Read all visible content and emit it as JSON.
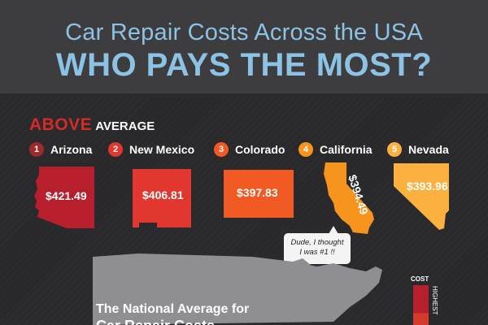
{
  "header": {
    "title_line1": "Car Repair Costs Across the USA",
    "title_line2": "WHO PAYS THE MOST?"
  },
  "section": {
    "heading_word1": "ABOVE",
    "heading_word2": "AVERAGE"
  },
  "states": [
    {
      "rank": "1",
      "name": "Arizona",
      "cost": "$421.49",
      "color": "#b81f2c"
    },
    {
      "rank": "2",
      "name": "New Mexico",
      "cost": "$406.81",
      "color": "#e2372f"
    },
    {
      "rank": "3",
      "name": "Colorado",
      "cost": "$397.83",
      "color": "#f15a22"
    },
    {
      "rank": "4",
      "name": "California",
      "cost": "$394.49",
      "color": "#f7941d"
    },
    {
      "rank": "5",
      "name": "Nevada",
      "cost": "$393.96",
      "color": "#fbb040"
    }
  ],
  "bubble": {
    "line1": "Dude, I thought",
    "line2": "I was #1 !!"
  },
  "bottom": {
    "national_line1": "The National Average for",
    "national_line2": "Car Repair Costs"
  },
  "legend": {
    "title": "COST",
    "highest": "HIGHEST"
  }
}
